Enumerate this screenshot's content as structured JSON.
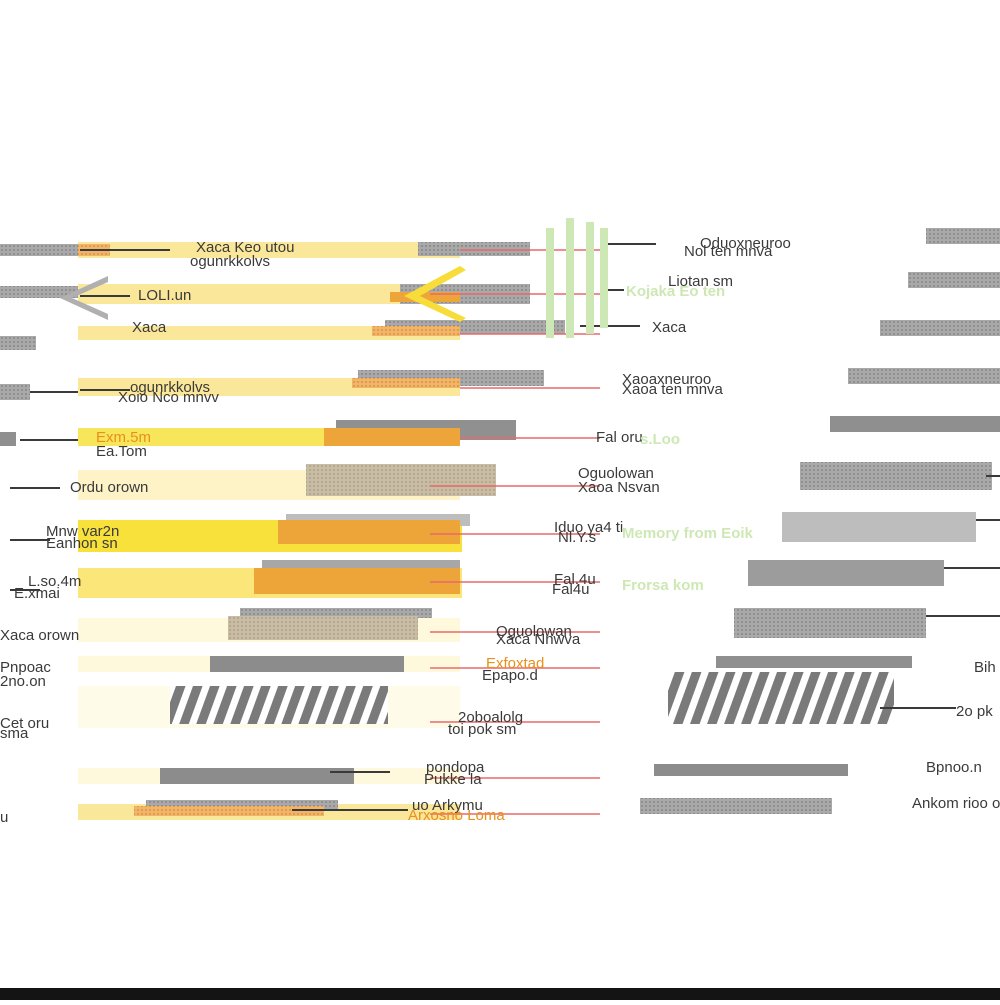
{
  "colors": {
    "yellow_band": "#fbe79a",
    "yellow_bright": "#f7e13a",
    "orange": "#eda53a",
    "gray": "#8f8f8f",
    "tan": "#c4b59c",
    "green_text": "#cde8b4",
    "red_line": "#e86a6a"
  },
  "labels": {
    "top_left_a": "Xaca Keo utou",
    "top_left_b": "ogunrkkolvs",
    "left_1": "LOLI.un",
    "left_2": "Xaca",
    "left_3": "ogunrkkolvs",
    "left_4": "Xoio Nco mnvv",
    "left_5": "Exm.5m",
    "left_6": "Ea.Tom",
    "left_7": "Ordu orown",
    "left_8": "Mnw var2n",
    "left_9": "Eanhon sn",
    "left_10": "L.so.4m",
    "left_11": "E.xmai",
    "left_12": "Xaca orown",
    "left_13": "Pnpoac",
    "left_14": "2no.on",
    "left_15": "Cet oru",
    "left_16": "sma",
    "left_17": "u",
    "mid_1": "Oduoxneuroo",
    "mid_2": "Nol ten mnva",
    "mid_3": "Liotan sm",
    "mid_4": "Xaca",
    "mid_5": "Xaoaxneuroo",
    "mid_6": "Xaoa ten mnva",
    "mid_7": "Fal oru",
    "mid_8": "Oguolowan",
    "mid_9": "Xaoa Nsvan",
    "mid_10": "Iduo ya4 ti",
    "mid_11": "Nl.Y.s",
    "mid_12": "Fal.4u",
    "mid_13": "Fal4u",
    "mid_14": "Oguolowan",
    "mid_15": "Xaca Nnwva",
    "mid_16": "Exfoxtad",
    "mid_17": "Epapo.d",
    "mid_18": "2oboalolg",
    "mid_19": "toi pok sm",
    "mid_20": "pondopa",
    "mid_21": "Pukke la",
    "mid_22": "uo Arkymu",
    "mid_23": "Arxosno Loma",
    "green_1": "Kojaka Eo ten",
    "green_2": "s.Loo",
    "green_3": "Memory from Eoik",
    "green_4": "Frorsa kom",
    "right_1": "Bih",
    "right_2": "2o pk",
    "right_3": "Bpnoo.n",
    "right_4": "Ankom rioo oc"
  }
}
